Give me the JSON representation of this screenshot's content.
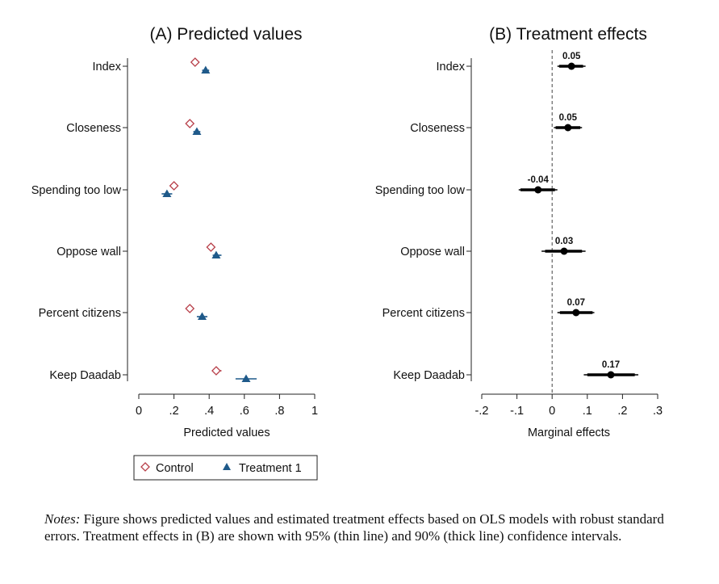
{
  "chart_data": [
    {
      "type": "scatter",
      "title": "(A) Predicted values",
      "xlabel": "Predicted values",
      "ylabel": "",
      "xlim": [
        0,
        1
      ],
      "xticks": [
        0,
        0.2,
        0.4,
        0.6,
        0.8,
        1
      ],
      "xtick_labels": [
        "0",
        ".2",
        ".4",
        ".6",
        ".8",
        "1"
      ],
      "categories": [
        "Index",
        "Closeness",
        "Spending too low",
        "Oppose wall",
        "Percent citizens",
        "Keep Daadab"
      ],
      "series": [
        {
          "name": "Control",
          "marker": "diamond-open",
          "color": "#b8404a",
          "values": [
            0.32,
            0.29,
            0.2,
            0.41,
            0.29,
            0.44
          ],
          "ci": [
            [
              0.3,
              0.34
            ],
            [
              0.27,
              0.31
            ],
            [
              0.18,
              0.22
            ],
            [
              0.39,
              0.43
            ],
            [
              0.27,
              0.31
            ],
            [
              0.42,
              0.47
            ]
          ]
        },
        {
          "name": "Treatment 1",
          "marker": "triangle",
          "color": "#1f5a8a",
          "values": [
            0.38,
            0.33,
            0.16,
            0.44,
            0.36,
            0.61
          ],
          "ci": [
            [
              0.36,
              0.4
            ],
            [
              0.31,
              0.35
            ],
            [
              0.13,
              0.19
            ],
            [
              0.42,
              0.47
            ],
            [
              0.33,
              0.39
            ],
            [
              0.55,
              0.67
            ]
          ]
        }
      ],
      "legend": {
        "placement": "bottom",
        "items": [
          "Control",
          "Treatment 1"
        ]
      }
    },
    {
      "type": "scatter",
      "title": "(B) Treatment effects",
      "xlabel": "Marginal effects",
      "ylabel": "",
      "xlim": [
        -0.2,
        0.3
      ],
      "xticks": [
        -0.2,
        -0.1,
        0,
        0.1,
        0.2,
        0.3
      ],
      "xtick_labels": [
        "-.2",
        "-.1",
        "0",
        ".1",
        ".2",
        ".3"
      ],
      "reference_line": 0,
      "categories": [
        "Index",
        "Closeness",
        "Spending too low",
        "Oppose wall",
        "Percent citizens",
        "Keep Daadab"
      ],
      "series": [
        {
          "color": "#000000",
          "values": [
            0.055,
            0.045,
            -0.04,
            0.034,
            0.068,
            0.167
          ],
          "labels": [
            "0.05",
            "0.05",
            "-0.04",
            "0.03",
            "0.07",
            "0.17"
          ],
          "ci95": [
            [
              0.015,
              0.095
            ],
            [
              0.005,
              0.085
            ],
            [
              -0.095,
              0.015
            ],
            [
              -0.03,
              0.095
            ],
            [
              0.015,
              0.12
            ],
            [
              0.09,
              0.245
            ]
          ],
          "ci90": [
            [
              0.02,
              0.088
            ],
            [
              0.01,
              0.08
            ],
            [
              -0.09,
              0.008
            ],
            [
              -0.02,
              0.085
            ],
            [
              0.022,
              0.115
            ],
            [
              0.1,
              0.235
            ]
          ]
        }
      ]
    }
  ],
  "notes": {
    "label": "Notes:",
    "text": " Figure shows predicted values and estimated treatment effects based on OLS models with robust standard errors. Treatment effects in (B) are shown with 95% (thin line) and 90% (thick line) confidence intervals."
  }
}
